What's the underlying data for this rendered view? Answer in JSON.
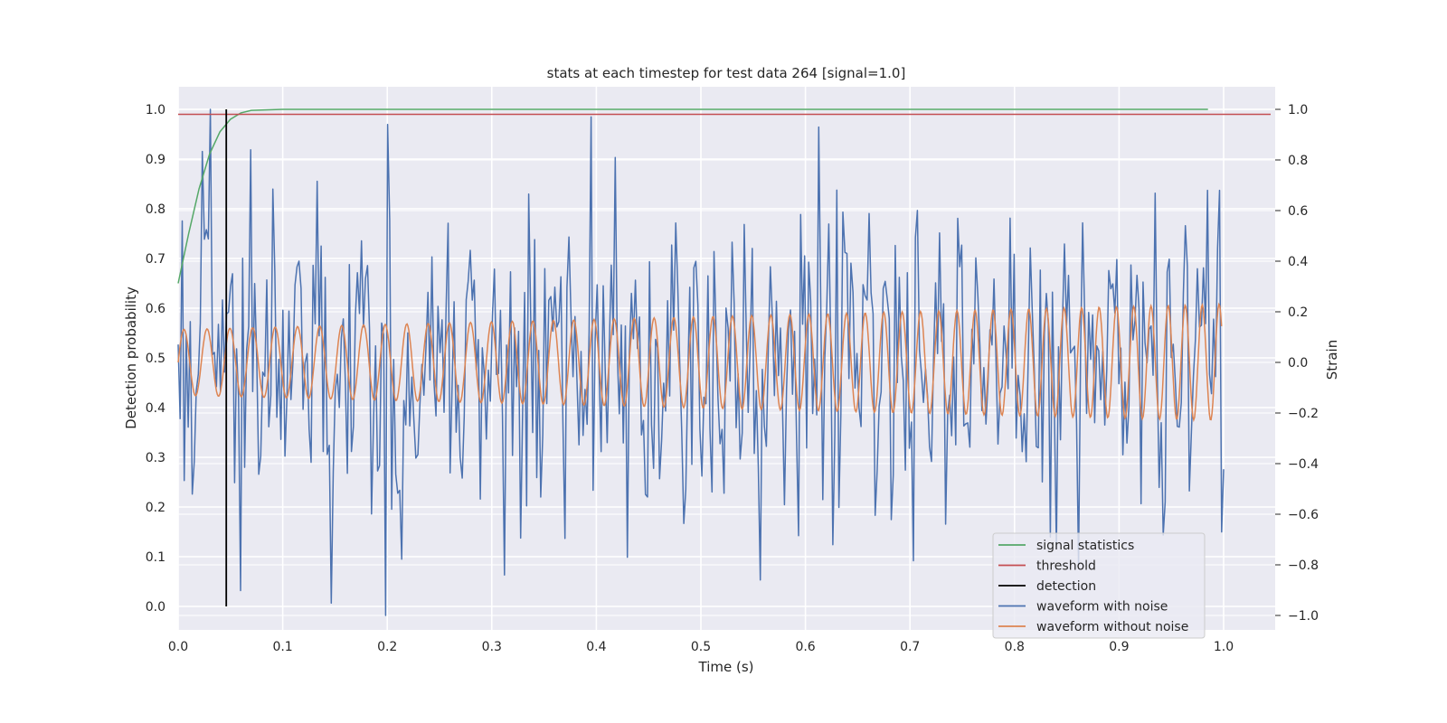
{
  "chart_data": {
    "type": "line",
    "title": "stats at each timestep for test data 264 [signal=1.0]",
    "xlabel": "Time (s)",
    "ylabel": "Detection probability",
    "y2label": "Strain",
    "xlim": [
      0.0,
      1.05
    ],
    "ylim": [
      -0.05,
      1.05
    ],
    "y2lim": [
      -1.05,
      1.05
    ],
    "xticks": [
      "0.0",
      "0.1",
      "0.2",
      "0.3",
      "0.4",
      "0.5",
      "0.6",
      "0.7",
      "0.8",
      "0.9",
      "1.0"
    ],
    "yticks": [
      "0.0",
      "0.1",
      "0.2",
      "0.3",
      "0.4",
      "0.5",
      "0.6",
      "0.7",
      "0.8",
      "0.9",
      "1.0"
    ],
    "y2ticks": [
      "−1.0",
      "−0.8",
      "−0.6",
      "−0.4",
      "−0.2",
      "0.0",
      "0.2",
      "0.4",
      "0.6",
      "0.8",
      "1.0"
    ],
    "grid": true,
    "legend_position": "lower-right",
    "colors": {
      "signal_statistics": "#55a868",
      "threshold": "#c44e52",
      "detection": "#000000",
      "waveform_with_noise": "#4c72b0",
      "waveform_without_noise": "#dd8452",
      "plot_bg": "#eaeaf2",
      "grid": "#ffffff"
    },
    "series": [
      {
        "name": "signal statistics",
        "axis": "left",
        "x": [
          0.0,
          0.01,
          0.02,
          0.03,
          0.04,
          0.05,
          0.06,
          0.07,
          0.1,
          0.2,
          0.4,
          0.6,
          0.8,
          0.985
        ],
        "y": [
          0.65,
          0.75,
          0.84,
          0.91,
          0.955,
          0.98,
          0.993,
          0.998,
          1.0,
          1.0,
          1.0,
          1.0,
          1.0,
          1.0
        ]
      },
      {
        "name": "threshold",
        "axis": "left",
        "x": [
          0.0,
          1.045
        ],
        "y": [
          0.99,
          0.99
        ]
      },
      {
        "name": "detection",
        "axis": "left",
        "x": [
          0.046,
          0.046
        ],
        "y": [
          0.0,
          1.0
        ]
      },
      {
        "name": "waveform with noise",
        "axis": "right",
        "x_start": 0.0,
        "x_end": 1.0,
        "points": 520,
        "noise_amplitude": 0.3,
        "seed": 264,
        "highlights": [
          {
            "x": 0.031,
            "y": 1.0
          },
          {
            "x": 0.2,
            "y": 0.94
          },
          {
            "x": 0.199,
            "y": -1.0
          },
          {
            "x": 0.07,
            "y": 0.84
          },
          {
            "x": 0.613,
            "y": 0.93
          },
          {
            "x": 0.556,
            "y": -0.86
          },
          {
            "x": 0.43,
            "y": -0.77
          },
          {
            "x": 0.418,
            "y": 0.81
          },
          {
            "x": 0.985,
            "y": 0.68
          },
          {
            "x": 0.996,
            "y": 0.68
          },
          {
            "x": 0.999,
            "y": -0.67
          },
          {
            "x": 0.861,
            "y": -0.8
          }
        ]
      },
      {
        "name": "waveform without noise",
        "axis": "right",
        "x_start": 0.0,
        "x_end": 0.998,
        "points": 1200,
        "amplitude_start": 0.13,
        "amplitude_end": 0.23,
        "frequency_start_hz": 45,
        "frequency_end_hz": 62
      }
    ]
  }
}
